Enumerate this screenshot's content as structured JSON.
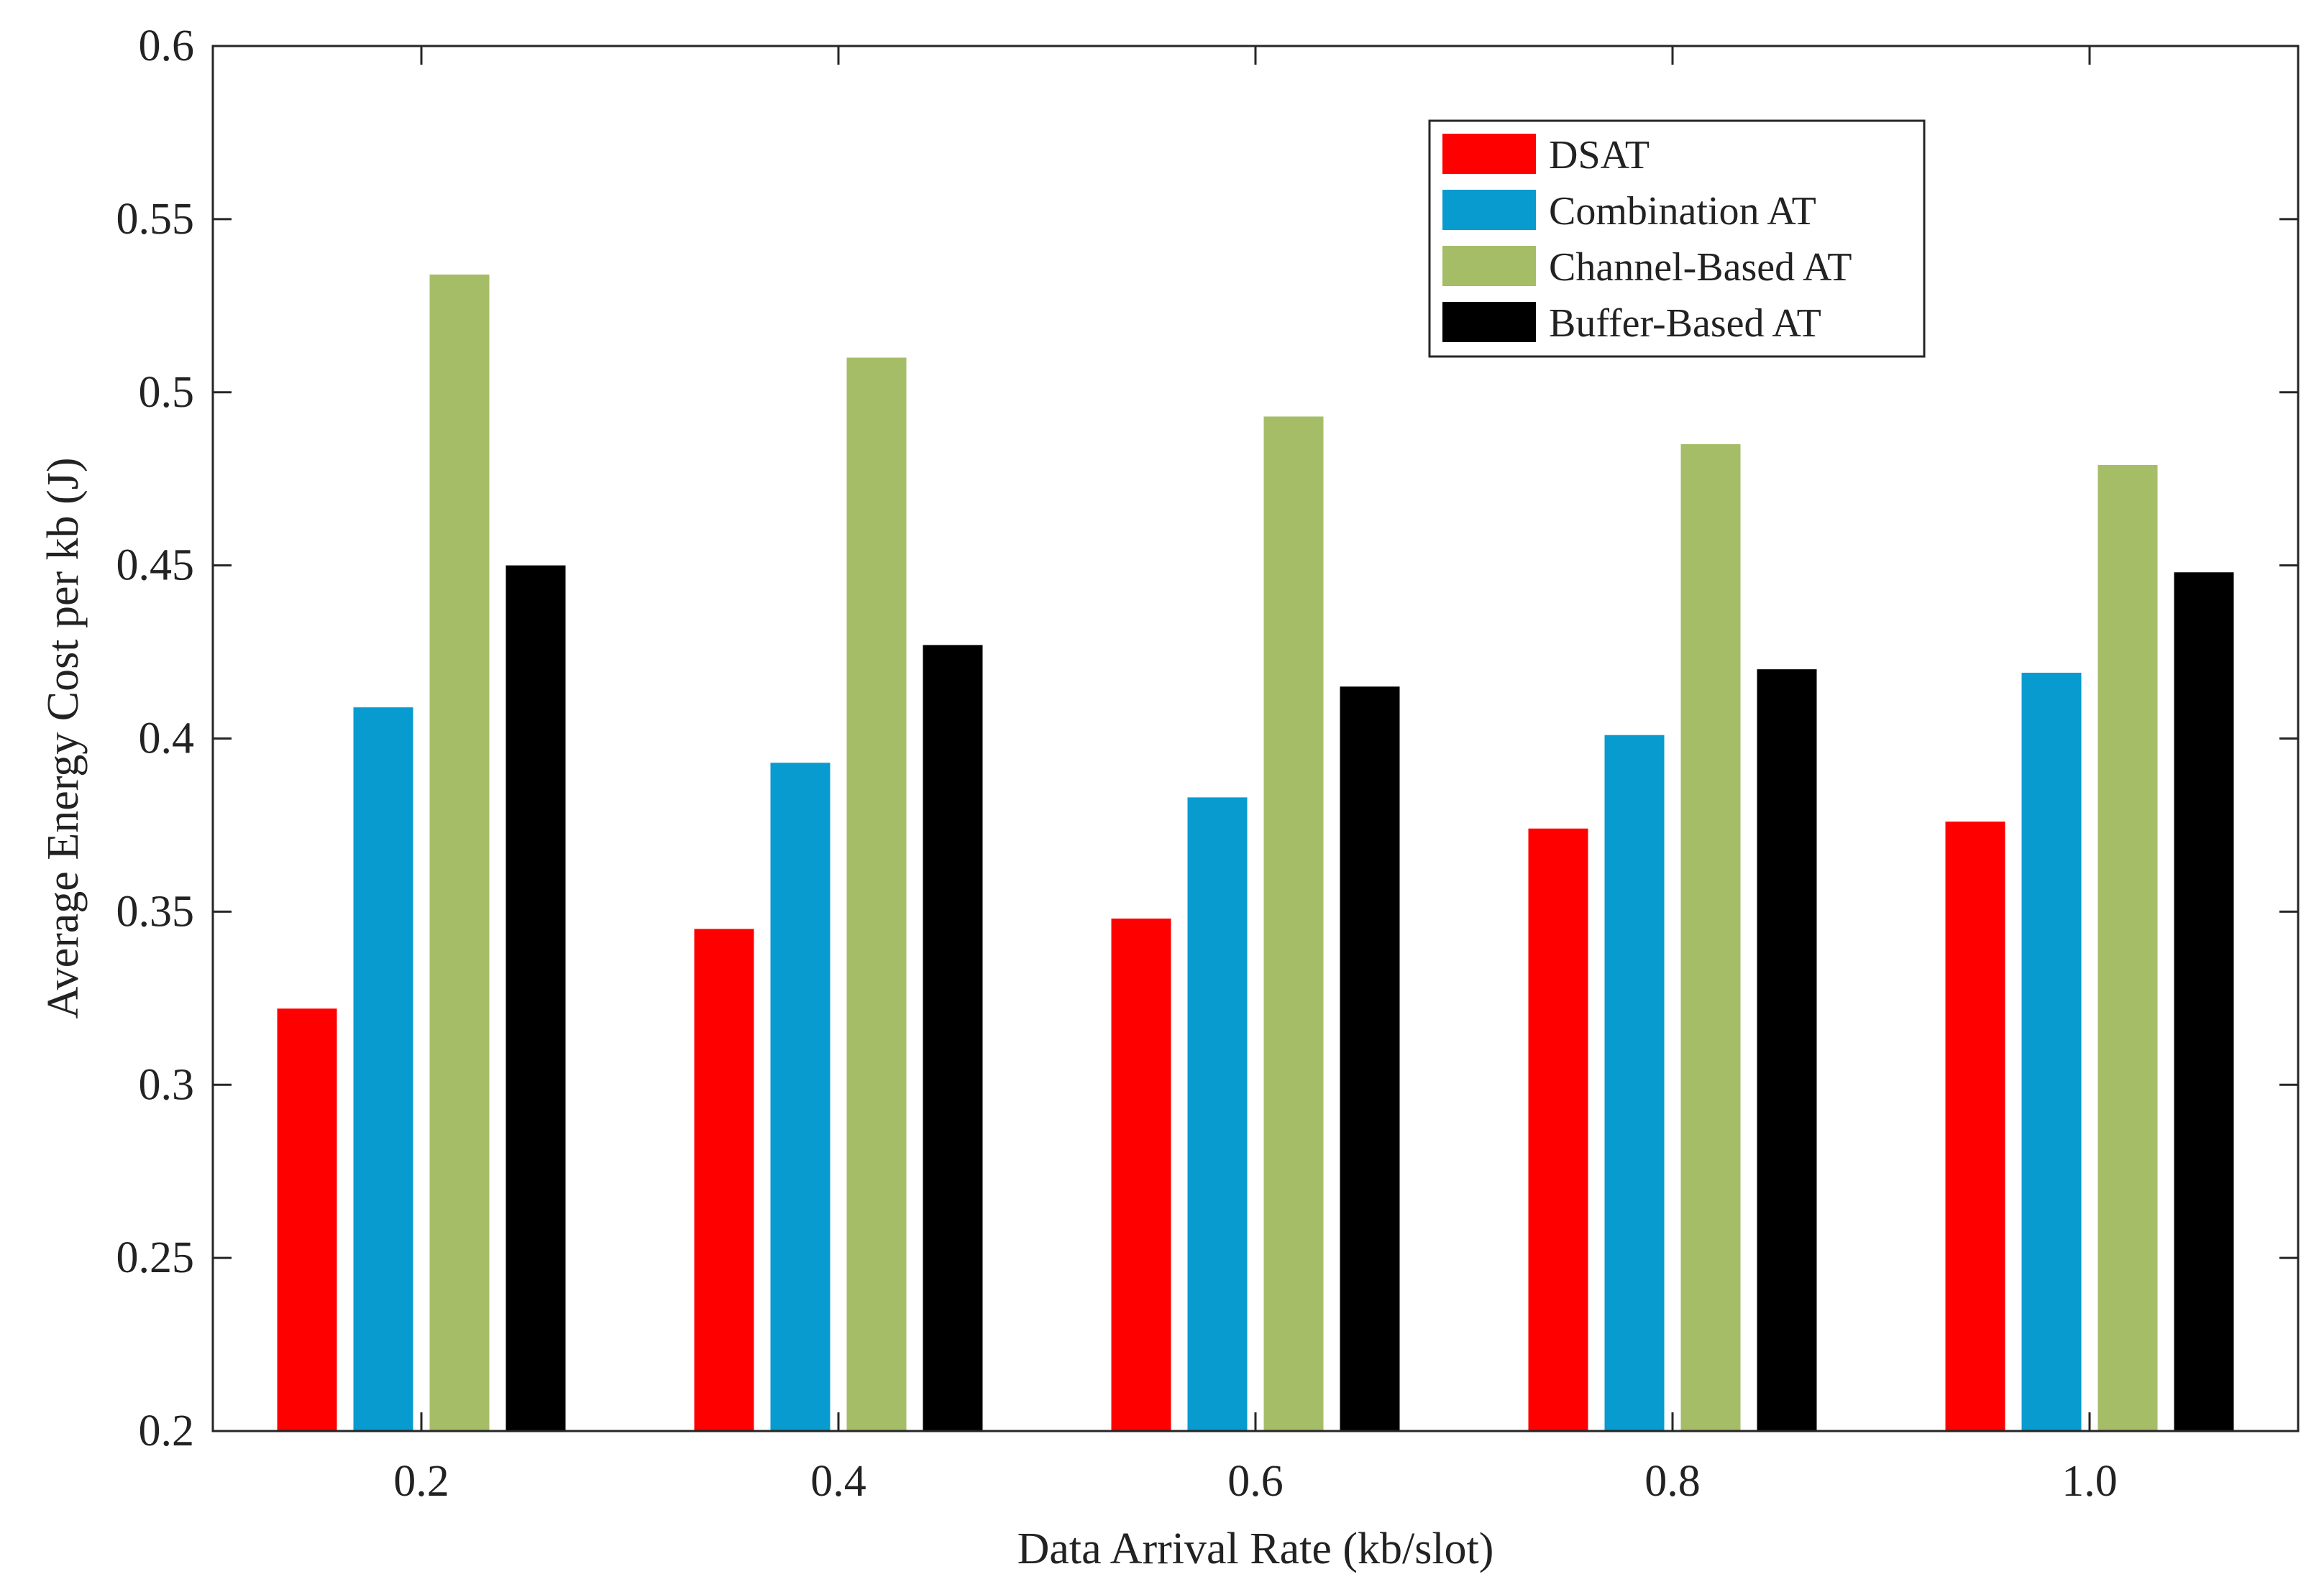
{
  "chart_data": {
    "type": "bar",
    "title": "",
    "xlabel": "Data Arrival Rate (kb/slot)",
    "ylabel": "Average Energy Cost per kb (J)",
    "categories": [
      "0.2",
      "0.4",
      "0.6",
      "0.8",
      "1.0"
    ],
    "ylim": [
      0.2,
      0.6
    ],
    "yticks": [
      0.2,
      0.25,
      0.3,
      0.35,
      0.4,
      0.45,
      0.5,
      0.55,
      0.6
    ],
    "ytick_labels": [
      "0.2",
      "0.25",
      "0.3",
      "0.35",
      "0.4",
      "0.45",
      "0.5",
      "0.55",
      "0.6"
    ],
    "grid": false,
    "legend_position": "top-right",
    "series": [
      {
        "name": "DSAT",
        "color": "#ff0000",
        "values": [
          0.322,
          0.345,
          0.348,
          0.374,
          0.376
        ]
      },
      {
        "name": "Combination AT",
        "color": "#079bd0",
        "values": [
          0.409,
          0.393,
          0.383,
          0.401,
          0.419
        ]
      },
      {
        "name": "Channel-Based AT",
        "color": "#a6bd68",
        "values": [
          0.534,
          0.51,
          0.493,
          0.485,
          0.479
        ]
      },
      {
        "name": "Buffer-Based AT",
        "color": "#000000",
        "values": [
          0.45,
          0.427,
          0.415,
          0.42,
          0.448
        ]
      }
    ]
  }
}
